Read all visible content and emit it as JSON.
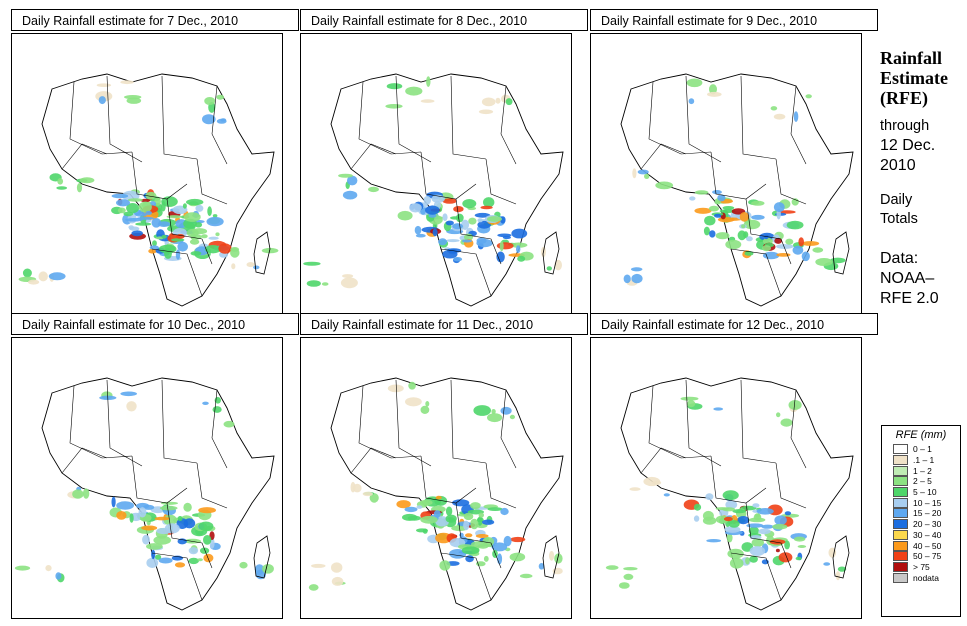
{
  "panels": [
    {
      "title": "Daily Rainfall estimate for  7 Dec., 2010",
      "intensity": 1.0
    },
    {
      "title": "Daily Rainfall estimate for  8 Dec., 2010",
      "intensity": 0.8
    },
    {
      "title": "Daily Rainfall estimate for  9 Dec., 2010",
      "intensity": 0.6
    },
    {
      "title": "Daily Rainfall estimate for  10 Dec., 2010",
      "intensity": 0.6
    },
    {
      "title": "Daily Rainfall estimate for  11 Dec., 2010",
      "intensity": 0.8
    },
    {
      "title": "Daily Rainfall estimate for  12 Dec., 2010",
      "intensity": 0.7
    }
  ],
  "side": {
    "title_lines": [
      "Rainfall",
      "Estimate",
      "(RFE)"
    ],
    "through_label": "through",
    "through_date_lines": [
      "12 Dec.",
      "2010"
    ],
    "totals_lines": [
      "Daily",
      "Totals"
    ],
    "data_lines": [
      "Data:",
      "NOAA–",
      "RFE 2.0"
    ]
  },
  "legend": {
    "title": "RFE (mm)",
    "items": [
      {
        "label": "0 – 1",
        "color": "#ffffff"
      },
      {
        "label": ".1 – 1",
        "color": "#f0e2c8"
      },
      {
        "label": "1 – 2",
        "color": "#c0ecb4"
      },
      {
        "label": "2 – 5",
        "color": "#8ce282"
      },
      {
        "label": "5 – 10",
        "color": "#4fd66a"
      },
      {
        "label": "10 – 15",
        "color": "#a8cef0"
      },
      {
        "label": "15 – 20",
        "color": "#5ea8f0"
      },
      {
        "label": "20 – 30",
        "color": "#1c6ee0"
      },
      {
        "label": "30 – 40",
        "color": "#fcd84c"
      },
      {
        "label": "40 – 50",
        "color": "#fc9a1c"
      },
      {
        "label": "50 – 75",
        "color": "#f04016"
      },
      {
        "label": "> 75",
        "color": "#b00e0e"
      },
      {
        "label": "nodata",
        "color": "#c8c8c8"
      }
    ]
  }
}
